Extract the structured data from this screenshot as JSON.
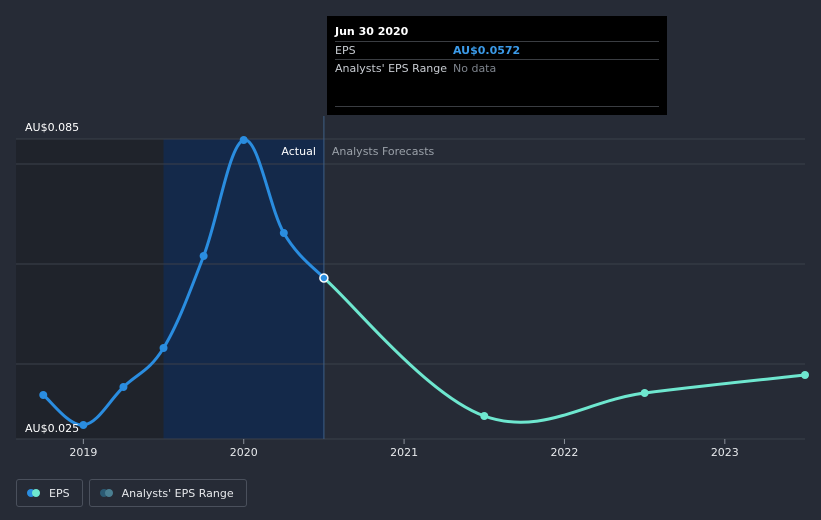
{
  "tooltip": {
    "date": "Jun 30 2020",
    "rows": [
      {
        "label": "EPS",
        "value": "AU$0.0572"
      },
      {
        "label": "Analysts' EPS Range",
        "value": "No data"
      }
    ]
  },
  "legend": [
    {
      "label": "EPS",
      "colors": [
        "#2a8de0",
        "#6ee7cf"
      ]
    },
    {
      "label": "Analysts' EPS Range",
      "colors": [
        "#2b5a73",
        "#4a7f92"
      ]
    }
  ],
  "colors": {
    "background": "#262b36",
    "actual_line": "#2a8de0",
    "forecast_line": "#6ee7cf",
    "actual_region": "#14294a",
    "past_band": "#1f232b",
    "grid": "#3b404b"
  },
  "chart_data": {
    "type": "line",
    "title": "",
    "xlabel": "",
    "ylabel": "",
    "y_axis_labels": [
      "AU$0.085",
      "AU$0.025"
    ],
    "ylim": [
      0.025,
      0.085
    ],
    "xlim": [
      2018.58,
      2023.5
    ],
    "x_ticks": [
      2019,
      2020,
      2021,
      2022,
      2023
    ],
    "x_tick_labels": [
      "2019",
      "2020",
      "2021",
      "2022",
      "2023"
    ],
    "region_labels": {
      "actual": "Actual",
      "forecast": "Analysts Forecasts"
    },
    "actual_band_start": 2019.5,
    "divider_x": 2020.5,
    "series": [
      {
        "name": "EPS",
        "segment": "actual",
        "points": [
          {
            "x": 2018.75,
            "y": 0.0338
          },
          {
            "x": 2019.0,
            "y": 0.0278
          },
          {
            "x": 2019.25,
            "y": 0.0354
          },
          {
            "x": 2019.5,
            "y": 0.0432
          },
          {
            "x": 2019.75,
            "y": 0.0616
          },
          {
            "x": 2020.0,
            "y": 0.0848
          },
          {
            "x": 2020.25,
            "y": 0.0662
          },
          {
            "x": 2020.5,
            "y": 0.0572
          }
        ]
      },
      {
        "name": "EPS",
        "segment": "forecast",
        "points": [
          {
            "x": 2020.5,
            "y": 0.0572
          },
          {
            "x": 2021.5,
            "y": 0.0296
          },
          {
            "x": 2022.5,
            "y": 0.0342
          },
          {
            "x": 2023.5,
            "y": 0.0378
          }
        ]
      }
    ],
    "highlight_point": {
      "x": 2020.5,
      "y": 0.0572
    },
    "grid": true,
    "legend_position": "bottom-left"
  }
}
